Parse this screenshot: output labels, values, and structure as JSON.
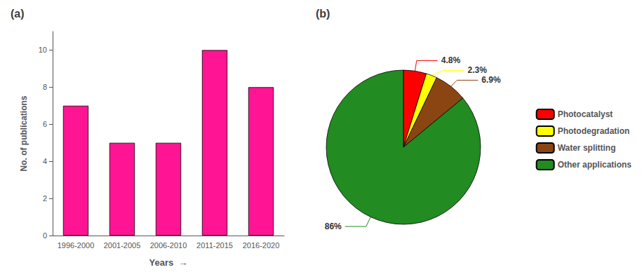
{
  "chart_data": [
    {
      "type": "bar",
      "title": "(a)",
      "categories": [
        "1996-2000",
        "2001-2005",
        "2006-2010",
        "2011-2015",
        "2016-2020"
      ],
      "values": [
        7,
        5,
        5,
        10,
        8
      ],
      "color": "#FF1493",
      "xlabel": "Years  →",
      "ylabel": "No. of publications",
      "ylim": [
        0,
        11
      ],
      "yticks": [
        0,
        2,
        4,
        6,
        8,
        10
      ],
      "grid": false
    },
    {
      "type": "pie",
      "title": "(b)",
      "categories": [
        "Photocatalyst",
        "Photodegradation",
        "Water splitting",
        "Other applications"
      ],
      "values": [
        4.8,
        2.3,
        6.9,
        86.0
      ],
      "value_labels": [
        "4.8%",
        "2.3%",
        "6.9%",
        "86%"
      ],
      "colors": [
        "#FF0000",
        "#FFFF00",
        "#8B4513",
        "#228B22"
      ],
      "data_labels": true,
      "legend": "right"
    }
  ]
}
